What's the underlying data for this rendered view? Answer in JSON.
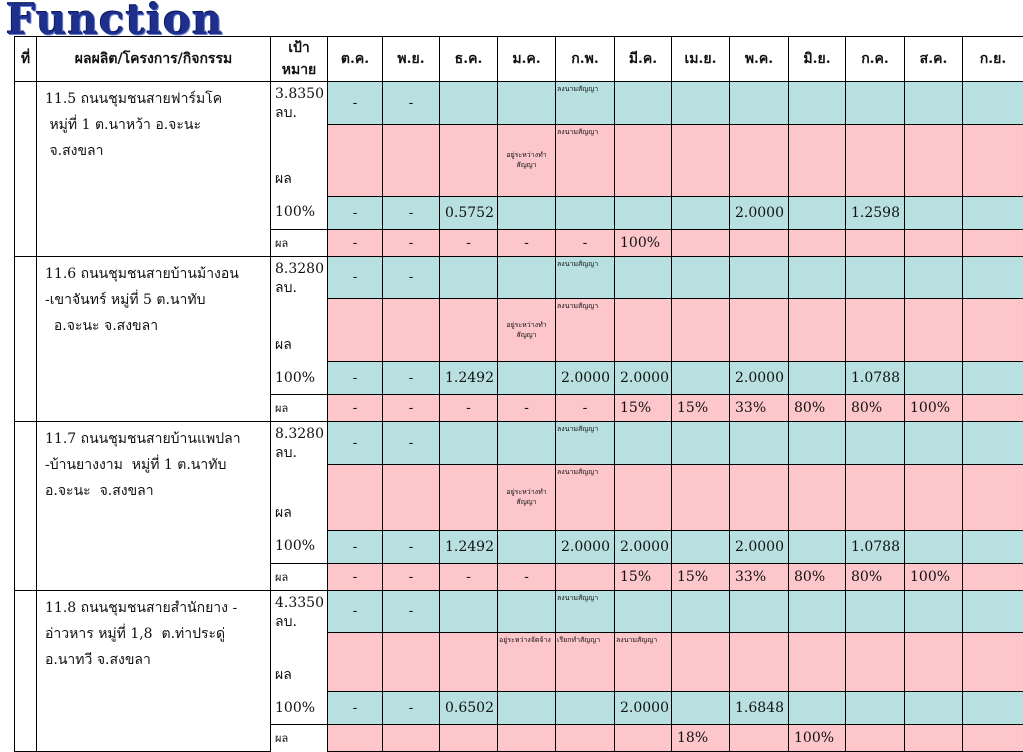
{
  "logo_text": "Function",
  "headers": {
    "no": "ที่",
    "project": "ผลผลิต/โครงการ/กิจกรรม",
    "target": "เป้าหมาย",
    "months": [
      "ต.ค.",
      "พ.ย.",
      "ธ.ค.",
      "ม.ค.",
      "ก.พ.",
      "มี.ค.",
      "เม.ย.",
      "พ.ค.",
      "มิ.ย.",
      "ก.ค.",
      "ส.ค.",
      "ก.ย."
    ]
  },
  "projects": [
    {
      "lines": [
        "11.5 ถนนชุมชนสายฟาร์มโค",
        " หมู่ที่ 1 ต.นาหว้า อ.จะนะ",
        " จ.สงขลา"
      ],
      "budget": "3.8350 ลบ.",
      "plan_label": "ผล",
      "pct_label": "100%",
      "result_label": "ผล",
      "row1": [
        "-",
        "-",
        "",
        "",
        "ลงนามสัญญา",
        "",
        "",
        "",
        "",
        "",
        "",
        ""
      ],
      "row2": [
        "",
        "",
        "",
        "อยู่ระหว่างทำสัญญา",
        "ลงนามสัญญา",
        "",
        "",
        "",
        "",
        "",
        "",
        ""
      ],
      "row3": [
        "-",
        "-",
        "0.5752",
        "",
        "",
        "",
        "",
        "2.0000",
        "",
        "1.2598",
        "",
        ""
      ],
      "row4": [
        "-",
        "-",
        "-",
        "-",
        "-",
        "100%",
        "",
        "",
        "",
        "",
        "",
        ""
      ]
    },
    {
      "lines": [
        "11.6 ถนนชุมชนสายบ้านม้างอน",
        "-เขาจันทร์ หมู่ที่ 5 ต.นาทับ",
        "  อ.จะนะ จ.สงขลา"
      ],
      "budget": "8.3280 ลบ.",
      "plan_label": "ผล",
      "pct_label": "100%",
      "result_label": "ผล",
      "row1": [
        "-",
        "-",
        "",
        "",
        "ลงนามสัญญา",
        "",
        "",
        "",
        "",
        "",
        "",
        ""
      ],
      "row2": [
        "",
        "",
        "",
        "อยู่ระหว่างทำสัญญา",
        "ลงนามสัญญา",
        "",
        "",
        "",
        "",
        "",
        "",
        ""
      ],
      "row3": [
        "-",
        "-",
        "1.2492",
        "",
        "2.0000",
        "2.0000",
        "",
        "2.0000",
        "",
        "1.0788",
        "",
        ""
      ],
      "row4": [
        "-",
        "-",
        "-",
        "-",
        "-",
        "15%",
        "15%",
        "33%",
        "80%",
        "80%",
        "100%",
        ""
      ]
    },
    {
      "lines": [
        "11.7 ถนนชุมชนสายบ้านแพปลา",
        "-บ้านยางงาม  หมู่ที่ 1 ต.นาทับ",
        "อ.จะนะ  จ.สงขลา"
      ],
      "budget": "8.3280 ลบ.",
      "plan_label": "ผล",
      "pct_label": "100%",
      "result_label": "ผล",
      "row1": [
        "-",
        "-",
        "",
        "",
        "ลงนามสัญญา",
        "",
        "",
        "",
        "",
        "",
        "",
        ""
      ],
      "row2": [
        "",
        "",
        "",
        "อยู่ระหว่างทำสัญญา",
        "ลงนามสัญญา",
        "",
        "",
        "",
        "",
        "",
        "",
        ""
      ],
      "row3": [
        "-",
        "-",
        "1.2492",
        "",
        "2.0000",
        "2.0000",
        "",
        "2.0000",
        "",
        "1.0788",
        "",
        ""
      ],
      "row4": [
        "-",
        "-",
        "-",
        "-",
        "",
        "15%",
        "15%",
        "33%",
        "80%",
        "80%",
        "100%",
        ""
      ]
    },
    {
      "lines": [
        "11.8 ถนนชุมชนสายสำนักยาง -",
        "อ่าวหาร หมู่ที่ 1,8  ต.ท่าประดู่",
        "อ.นาทวี จ.สงขลา"
      ],
      "budget": "4.3350 ลบ.",
      "plan_label": "ผล",
      "pct_label": "100%",
      "result_label": "ผล",
      "row1": [
        "-",
        "-",
        "",
        "",
        "ลงนามสัญญา",
        "",
        "",
        "",
        "",
        "",
        "",
        ""
      ],
      "row2": [
        "",
        "",
        "",
        "อยู่ระหว่างจัดจ้าง",
        "เรียกทำสัญญา",
        "ลงนามสัญญา",
        "",
        "",
        "",
        "",
        "",
        ""
      ],
      "row3": [
        "-",
        "-",
        "0.6502",
        "",
        "",
        "2.0000",
        "",
        "1.6848",
        "",
        "",
        "",
        ""
      ],
      "row4": [
        "",
        "",
        "",
        "",
        "",
        "",
        "18%",
        "",
        "100%",
        "",
        "",
        ""
      ]
    }
  ]
}
